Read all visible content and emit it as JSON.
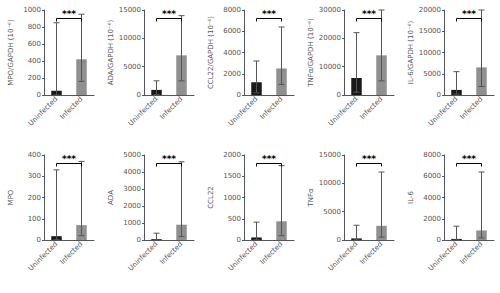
{
  "chart_data": [
    {
      "type": "bar",
      "ylabel": "MPO/GAPDH (10⁻⁶)",
      "categories": [
        "Uninfected",
        "Infected"
      ],
      "values": [
        50,
        420
      ],
      "colors": [
        "#1a1a1a",
        "#909090"
      ],
      "error_low": [
        0,
        160
      ],
      "error_high": [
        850,
        950
      ],
      "ylim": [
        0,
        1000
      ],
      "yticks": [
        0,
        200,
        400,
        600,
        800,
        1000
      ],
      "annotation": "***",
      "grid": false
    },
    {
      "type": "bar",
      "ylabel": "ADA/GAPDH (10⁻⁶)",
      "categories": [
        "Uninfected",
        "Infected"
      ],
      "values": [
        900,
        7000
      ],
      "colors": [
        "#1a1a1a",
        "#909090"
      ],
      "error_low": [
        100,
        2500
      ],
      "error_high": [
        2500,
        14000
      ],
      "ylim": [
        0,
        15000
      ],
      "yticks": [
        0,
        5000,
        10000,
        15000
      ],
      "annotation": "***",
      "grid": false
    },
    {
      "type": "bar",
      "ylabel": "CCL22/GAPDH (10⁻⁶)",
      "categories": [
        "Uninfected",
        "Infected"
      ],
      "values": [
        1200,
        2500
      ],
      "colors": [
        "#1a1a1a",
        "#909090"
      ],
      "error_low": [
        200,
        1000
      ],
      "error_high": [
        3200,
        6400
      ],
      "ylim": [
        0,
        8000
      ],
      "yticks": [
        0,
        2000,
        4000,
        6000,
        8000
      ],
      "annotation": "***",
      "grid": false
    },
    {
      "type": "bar",
      "ylabel": "TNFα/GAPDH (10⁻⁶)",
      "categories": [
        "Uninfected",
        "Infected"
      ],
      "values": [
        6000,
        14000
      ],
      "colors": [
        "#1a1a1a",
        "#909090"
      ],
      "error_low": [
        1000,
        5000
      ],
      "error_high": [
        22000,
        30000
      ],
      "ylim": [
        0,
        30000
      ],
      "yticks": [
        0,
        10000,
        20000,
        30000
      ],
      "annotation": "***",
      "grid": false
    },
    {
      "type": "bar",
      "ylabel": "IL-6/GAPDH (10⁻⁶)",
      "categories": [
        "Uninfected",
        "Infected"
      ],
      "values": [
        1200,
        6500
      ],
      "colors": [
        "#1a1a1a",
        "#909090"
      ],
      "error_low": [
        200,
        2000
      ],
      "error_high": [
        5500,
        20000
      ],
      "ylim": [
        0,
        20000
      ],
      "yticks": [
        0,
        5000,
        10000,
        15000,
        20000
      ],
      "annotation": "***",
      "grid": false
    },
    {
      "type": "bar",
      "ylabel": "MPO",
      "categories": [
        "Uninfected",
        "Infected"
      ],
      "values": [
        18,
        70
      ],
      "colors": [
        "#1a1a1a",
        "#909090"
      ],
      "error_low": [
        2,
        20
      ],
      "error_high": [
        330,
        370
      ],
      "ylim": [
        0,
        400
      ],
      "yticks": [
        0,
        100,
        200,
        300,
        400
      ],
      "annotation": "***",
      "grid": false
    },
    {
      "type": "bar",
      "ylabel": "ADA",
      "categories": [
        "Uninfected",
        "Infected"
      ],
      "values": [
        50,
        900
      ],
      "colors": [
        "#1a1a1a",
        "#909090"
      ],
      "error_low": [
        5,
        200
      ],
      "error_high": [
        400,
        4600
      ],
      "ylim": [
        0,
        5000
      ],
      "yticks": [
        0,
        1000,
        2000,
        3000,
        4000,
        5000
      ],
      "annotation": "***",
      "grid": false
    },
    {
      "type": "bar",
      "ylabel": "CCL22",
      "categories": [
        "Uninfected",
        "Infected"
      ],
      "values": [
        60,
        440
      ],
      "colors": [
        "#1a1a1a",
        "#909090"
      ],
      "error_low": [
        5,
        100
      ],
      "error_high": [
        420,
        1750
      ],
      "ylim": [
        0,
        2000
      ],
      "yticks": [
        0,
        500,
        1000,
        1500,
        2000
      ],
      "annotation": "***",
      "grid": false
    },
    {
      "type": "bar",
      "ylabel": "TNFα",
      "categories": [
        "Uninfected",
        "Infected"
      ],
      "values": [
        280,
        2500
      ],
      "colors": [
        "#1a1a1a",
        "#909090"
      ],
      "error_low": [
        40,
        500
      ],
      "error_high": [
        2600,
        12000
      ],
      "ylim": [
        0,
        15000
      ],
      "yticks": [
        0,
        5000,
        10000,
        15000
      ],
      "annotation": "***",
      "grid": false
    },
    {
      "type": "bar",
      "ylabel": "IL-6",
      "categories": [
        "Uninfected",
        "Infected"
      ],
      "values": [
        100,
        900
      ],
      "colors": [
        "#1a1a1a",
        "#909090"
      ],
      "error_low": [
        10,
        200
      ],
      "error_high": [
        1300,
        6400
      ],
      "ylim": [
        0,
        8000
      ],
      "yticks": [
        0,
        2000,
        4000,
        6000,
        8000
      ],
      "annotation": "***",
      "grid": false
    }
  ]
}
